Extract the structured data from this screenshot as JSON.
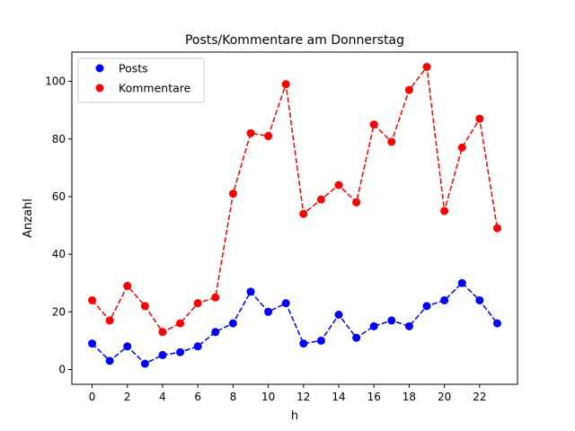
{
  "chart_data": {
    "type": "line",
    "title": "Posts/Kommentare am Donnerstag",
    "xlabel": "h",
    "ylabel": "Anzahl",
    "x": [
      0,
      1,
      2,
      3,
      4,
      5,
      6,
      7,
      8,
      9,
      10,
      11,
      12,
      13,
      14,
      15,
      16,
      17,
      18,
      19,
      20,
      21,
      22,
      23
    ],
    "xticks": [
      "0",
      "2",
      "4",
      "6",
      "8",
      "10",
      "12",
      "14",
      "16",
      "18",
      "20",
      "22"
    ],
    "yticks": [
      "0",
      "20",
      "40",
      "60",
      "80",
      "100"
    ],
    "xlim": [
      -1.15,
      24.15
    ],
    "ylim": [
      -5.15,
      110.15
    ],
    "grid": false,
    "legend_position": "top-left",
    "series": [
      {
        "name": "Posts",
        "color": "#0000ff",
        "marker": "circle",
        "linestyle": "dashed",
        "values": [
          9,
          3,
          8,
          2,
          5,
          6,
          8,
          13,
          16,
          27,
          20,
          23,
          9,
          10,
          19,
          11,
          15,
          17,
          15,
          22,
          24,
          30,
          24,
          16
        ]
      },
      {
        "name": "Kommentare",
        "color": "#ff0000",
        "marker": "circle",
        "linestyle": "dashed",
        "values": [
          24,
          17,
          29,
          22,
          13,
          16,
          23,
          25,
          61,
          82,
          81,
          99,
          54,
          59,
          64,
          58,
          85,
          79,
          97,
          105,
          55,
          77,
          87,
          49
        ]
      }
    ]
  }
}
